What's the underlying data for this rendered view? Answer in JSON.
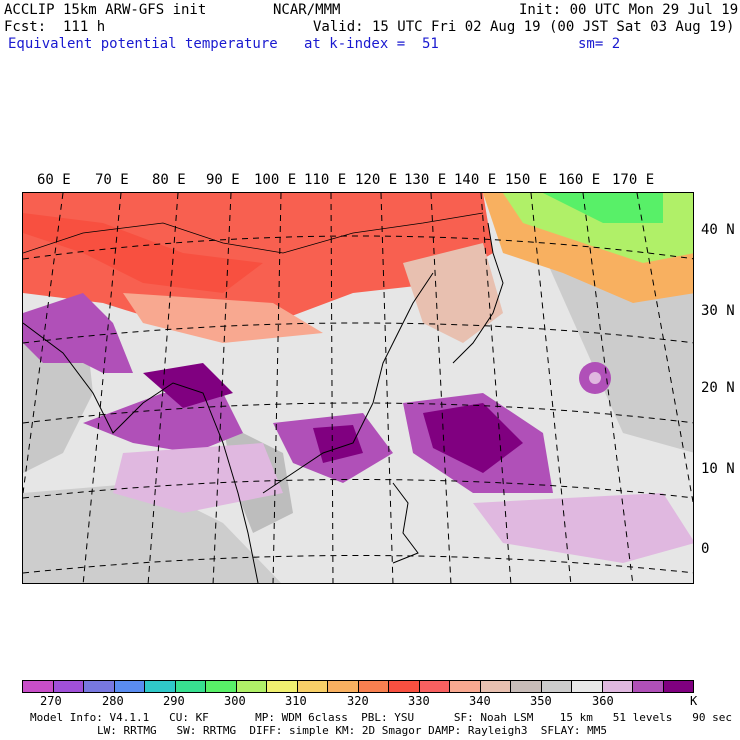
{
  "header": {
    "model": "ACCLIP 15km ARW-GFS init",
    "org": "NCAR/MMM",
    "init": "Init: 00 UTC Mon 29 Jul 19",
    "fcst": "Fcst:  111 h",
    "valid": "Valid: 15 UTC Fri 02 Aug 19 (00 JST Sat 03 Aug 19)",
    "field": "Equivalent potential temperature",
    "level": "at k-index =  51",
    "smooth": "sm= 2"
  },
  "lon_labels": [
    "60 E",
    "70 E",
    "80 E",
    "90 E",
    "100 E",
    "110 E",
    "120 E",
    "130 E",
    "140 E",
    "150 E",
    "160 E",
    "170 E"
  ],
  "lat_labels": [
    "40 N",
    "30 N",
    "20 N",
    "10 N",
    "0"
  ],
  "colorbar": {
    "colors": [
      "#c84ec8",
      "#a050d8",
      "#7878e0",
      "#5a8cf0",
      "#30c8c8",
      "#38e090",
      "#58f068",
      "#b0f068",
      "#f0f070",
      "#f8d068",
      "#f8b060",
      "#f88050",
      "#f85040",
      "#f86060",
      "#f8a890",
      "#e8c0b0",
      "#c8bcb8",
      "#cccccc",
      "#e8e8e8",
      "#e0b8e0",
      "#b050b8",
      "#800080"
    ],
    "ticks": [
      "270",
      "280",
      "290",
      "300",
      "310",
      "320",
      "330",
      "340",
      "350",
      "360"
    ],
    "unit": "K"
  },
  "model_info": {
    "line1": "Model Info: V4.1.1   CU: KF       MP: WDM 6class  PBL: YSU      SF: Noah LSM    15 km   51 levels   90 sec",
    "line2": "LW: RRTMG   SW: RRTMG  DIFF: simple KM: 2D Smagor DAMP: Rayleigh3  SFLAY: MM5"
  }
}
